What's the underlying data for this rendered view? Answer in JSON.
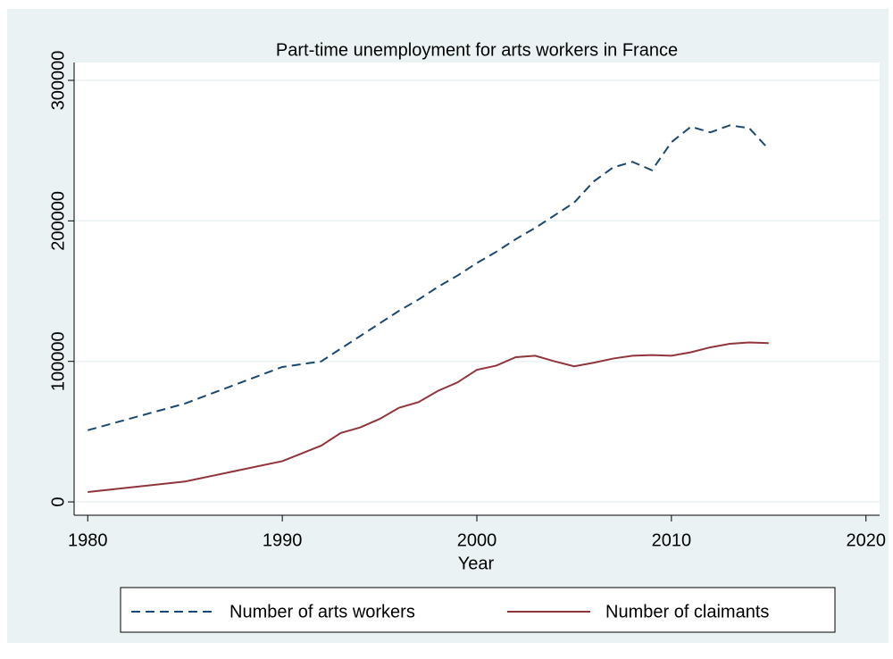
{
  "chart_data": {
    "type": "line",
    "title": "Part-time unemployment for arts workers in France",
    "x_label": "Year",
    "x": [
      1980,
      1985,
      1990,
      1992,
      1993,
      1994,
      1995,
      1996,
      1997,
      1998,
      1999,
      2000,
      2001,
      2002,
      2003,
      2004,
      2005,
      2006,
      2007,
      2008,
      2009,
      2010,
      2011,
      2012,
      2013,
      2014,
      2015
    ],
    "series": [
      {
        "name": "Number of arts workers",
        "color": "#1a476f",
        "dash": true,
        "values": [
          51000,
          70000,
          96000,
          100000,
          109000,
          118000,
          127000,
          136000,
          144000,
          153000,
          161000,
          170000,
          178000,
          187000,
          195000,
          204000,
          213000,
          228000,
          238000,
          242000,
          236000,
          256000,
          267000,
          263000,
          268000,
          266000,
          251000
        ]
      },
      {
        "name": "Number of claimants",
        "color": "#90353b",
        "dash": false,
        "values": [
          7000,
          14500,
          29000,
          40000,
          49000,
          53000,
          59000,
          67000,
          71000,
          79000,
          85000,
          94000,
          97000,
          103000,
          104000,
          100000,
          96500,
          99000,
          102000,
          104000,
          104500,
          104000,
          106500,
          110000,
          112500,
          113500,
          113000
        ]
      }
    ],
    "xlim": [
      1979.3,
      2020.7
    ],
    "xticks": [
      1980,
      1990,
      2000,
      2010,
      2020
    ],
    "ylim": [
      -9500,
      312700
    ],
    "yticks": [
      0,
      100000,
      200000,
      300000
    ],
    "grid": true,
    "legend": "bottom"
  }
}
